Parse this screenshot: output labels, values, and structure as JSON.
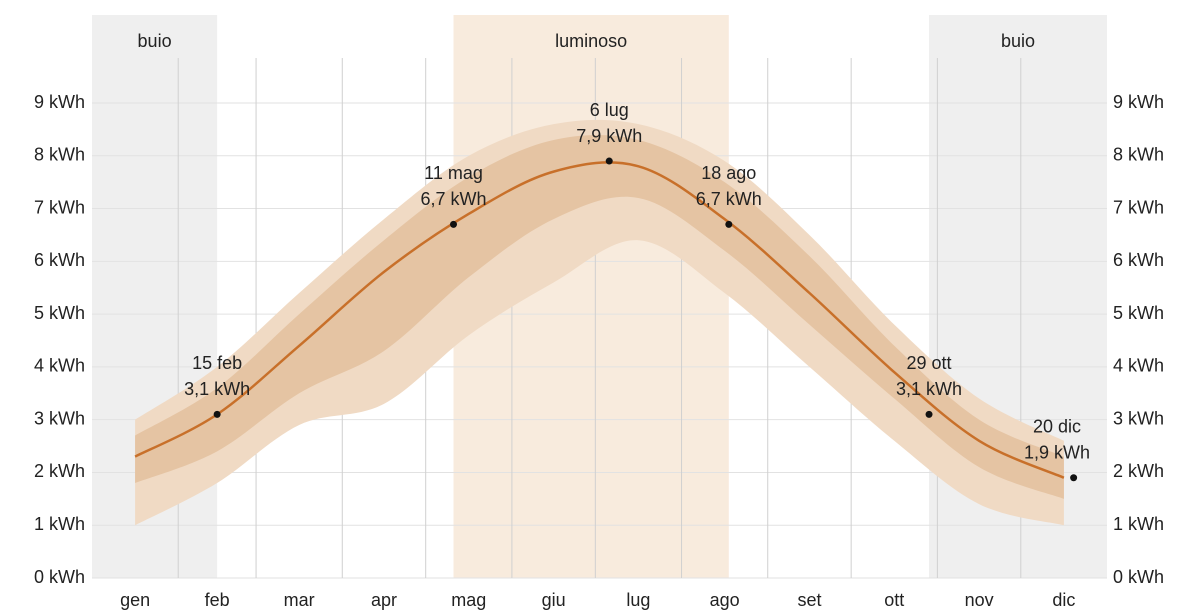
{
  "chart_data": {
    "type": "band-line",
    "categories": [
      "gen",
      "feb",
      "mar",
      "apr",
      "mag",
      "giu",
      "lug",
      "ago",
      "set",
      "ott",
      "nov",
      "dic"
    ],
    "series": [
      {
        "color": "#c8702a",
        "values": [
          2.3,
          3.1,
          4.4,
          5.8,
          6.9,
          7.7,
          7.8,
          6.8,
          5.4,
          3.9,
          2.6,
          1.9
        ]
      }
    ],
    "bands": [
      {
        "color": "#f0dac4",
        "low": [
          1.0,
          1.8,
          2.9,
          3.3,
          4.6,
          5.6,
          6.4,
          5.4,
          4.0,
          2.6,
          1.4,
          1.0
        ],
        "high": [
          3.0,
          4.0,
          5.4,
          6.8,
          8.0,
          8.6,
          8.6,
          7.9,
          6.5,
          4.8,
          3.4,
          2.6
        ]
      },
      {
        "color": "#e5c4a3",
        "low": [
          1.8,
          2.4,
          3.5,
          4.3,
          5.7,
          6.8,
          7.2,
          6.2,
          4.8,
          3.4,
          2.1,
          1.5
        ],
        "high": [
          2.7,
          3.6,
          5.0,
          6.4,
          7.6,
          8.3,
          8.3,
          7.5,
          6.1,
          4.4,
          3.0,
          2.3
        ]
      }
    ],
    "periods": [
      {
        "label": "buio",
        "color": "#efefef"
      },
      {
        "label": "luminoso",
        "color": "#f8ebdd"
      },
      {
        "label": "buio",
        "color": "#efefef"
      }
    ],
    "annotations": [
      {
        "date": "15 feb",
        "value": 3.1,
        "label": "3,1 kWh"
      },
      {
        "date": "11 mag",
        "value": 6.7,
        "label": "6,7 kWh"
      },
      {
        "date": "6 lug",
        "value": 7.9,
        "label": "7,9 kWh"
      },
      {
        "date": "18 ago",
        "value": 6.7,
        "label": "6,7 kWh"
      },
      {
        "date": "29 ott",
        "value": 3.1,
        "label": "3,1 kWh"
      },
      {
        "date": "20 dic",
        "value": 1.9,
        "label": "1,9 kWh"
      }
    ],
    "ylim": [
      0,
      9
    ],
    "yticks": [
      {
        "value": 0,
        "label": "0 kWh"
      },
      {
        "value": 1,
        "label": "1 kWh"
      },
      {
        "value": 2,
        "label": "2 kWh"
      },
      {
        "value": 3,
        "label": "3 kWh"
      },
      {
        "value": 4,
        "label": "4 kWh"
      },
      {
        "value": 5,
        "label": "5 kWh"
      },
      {
        "value": 6,
        "label": "6 kWh"
      },
      {
        "value": 7,
        "label": "7 kWh"
      },
      {
        "value": 8,
        "label": "8 kWh"
      },
      {
        "value": 9,
        "label": "9 kWh"
      }
    ],
    "grid": true
  }
}
